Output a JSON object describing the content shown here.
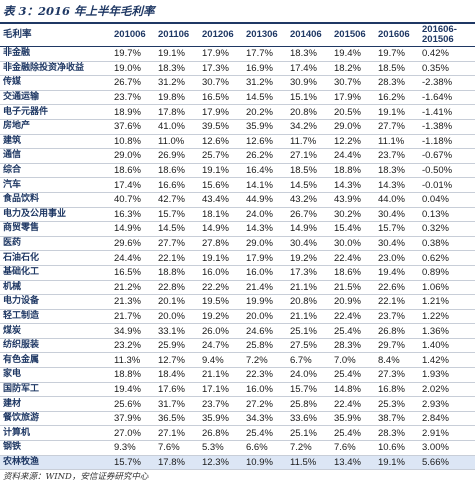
{
  "title": "表 3：2016 年上半年毛利率",
  "columns": [
    "毛利率",
    "201006",
    "201106",
    "201206",
    "201306",
    "201406",
    "201506",
    "201606",
    "201606-201506"
  ],
  "rows": [
    [
      "非金融",
      "19.7%",
      "19.1%",
      "17.9%",
      "17.7%",
      "18.3%",
      "19.4%",
      "19.7%",
      "0.42%"
    ],
    [
      "非金融除投资净收益",
      "19.0%",
      "18.3%",
      "17.3%",
      "16.9%",
      "17.4%",
      "18.2%",
      "18.5%",
      "0.35%"
    ],
    [
      "传媒",
      "26.7%",
      "31.2%",
      "30.7%",
      "31.2%",
      "30.9%",
      "30.7%",
      "28.3%",
      "-2.38%"
    ],
    [
      "交通运输",
      "23.7%",
      "19.8%",
      "16.5%",
      "14.5%",
      "15.1%",
      "17.9%",
      "16.2%",
      "-1.64%"
    ],
    [
      "电子元器件",
      "18.9%",
      "17.8%",
      "17.9%",
      "20.2%",
      "20.8%",
      "20.5%",
      "19.1%",
      "-1.41%"
    ],
    [
      "房地产",
      "37.6%",
      "41.0%",
      "39.5%",
      "35.9%",
      "34.2%",
      "29.0%",
      "27.7%",
      "-1.38%"
    ],
    [
      "建筑",
      "10.8%",
      "11.0%",
      "12.6%",
      "12.6%",
      "11.7%",
      "12.2%",
      "11.1%",
      "-1.18%"
    ],
    [
      "通信",
      "29.0%",
      "26.9%",
      "25.7%",
      "26.2%",
      "27.1%",
      "24.4%",
      "23.7%",
      "-0.67%"
    ],
    [
      "综合",
      "18.6%",
      "18.6%",
      "19.1%",
      "16.4%",
      "18.5%",
      "18.8%",
      "18.3%",
      "-0.50%"
    ],
    [
      "汽车",
      "17.4%",
      "16.6%",
      "15.6%",
      "14.1%",
      "14.5%",
      "14.3%",
      "14.3%",
      "-0.01%"
    ],
    [
      "食品饮料",
      "40.7%",
      "42.7%",
      "43.4%",
      "44.9%",
      "43.2%",
      "43.9%",
      "44.0%",
      "0.04%"
    ],
    [
      "电力及公用事业",
      "16.3%",
      "15.7%",
      "18.1%",
      "24.0%",
      "26.7%",
      "30.2%",
      "30.4%",
      "0.13%"
    ],
    [
      "商贸零售",
      "14.9%",
      "14.5%",
      "14.9%",
      "14.3%",
      "14.9%",
      "15.4%",
      "15.7%",
      "0.32%"
    ],
    [
      "医药",
      "29.6%",
      "27.7%",
      "27.8%",
      "29.0%",
      "30.4%",
      "30.0%",
      "30.4%",
      "0.38%"
    ],
    [
      "石油石化",
      "24.4%",
      "22.1%",
      "19.1%",
      "17.9%",
      "19.2%",
      "22.4%",
      "23.0%",
      "0.62%"
    ],
    [
      "基础化工",
      "16.5%",
      "18.8%",
      "16.0%",
      "16.0%",
      "17.3%",
      "18.6%",
      "19.4%",
      "0.89%"
    ],
    [
      "机械",
      "21.2%",
      "22.8%",
      "22.2%",
      "21.4%",
      "21.1%",
      "21.5%",
      "22.6%",
      "1.06%"
    ],
    [
      "电力设备",
      "21.3%",
      "20.1%",
      "19.5%",
      "19.9%",
      "20.8%",
      "20.9%",
      "22.1%",
      "1.21%"
    ],
    [
      "轻工制造",
      "21.7%",
      "20.0%",
      "19.2%",
      "20.0%",
      "21.1%",
      "22.4%",
      "23.7%",
      "1.22%"
    ],
    [
      "煤炭",
      "34.9%",
      "33.1%",
      "26.0%",
      "24.6%",
      "25.1%",
      "25.4%",
      "26.8%",
      "1.36%"
    ],
    [
      "纺织服装",
      "23.2%",
      "25.9%",
      "24.7%",
      "25.8%",
      "27.5%",
      "28.3%",
      "29.7%",
      "1.40%"
    ],
    [
      "有色金属",
      "11.3%",
      "12.7%",
      "9.4%",
      "7.2%",
      "6.7%",
      "7.0%",
      "8.4%",
      "1.42%"
    ],
    [
      "家电",
      "18.8%",
      "18.4%",
      "21.1%",
      "22.3%",
      "24.0%",
      "25.4%",
      "27.3%",
      "1.93%"
    ],
    [
      "国防军工",
      "19.4%",
      "17.6%",
      "17.1%",
      "16.0%",
      "15.7%",
      "14.8%",
      "16.8%",
      "2.02%"
    ],
    [
      "建材",
      "25.6%",
      "31.7%",
      "23.7%",
      "27.2%",
      "25.8%",
      "22.4%",
      "25.3%",
      "2.93%"
    ],
    [
      "餐饮旅游",
      "37.9%",
      "36.5%",
      "35.9%",
      "34.3%",
      "33.6%",
      "35.9%",
      "38.7%",
      "2.84%"
    ],
    [
      "计算机",
      "27.0%",
      "27.1%",
      "26.8%",
      "25.4%",
      "25.1%",
      "25.4%",
      "28.3%",
      "2.91%"
    ],
    [
      "钢铁",
      "9.3%",
      "7.6%",
      "5.3%",
      "6.6%",
      "7.2%",
      "7.6%",
      "10.6%",
      "3.00%"
    ],
    [
      "农林牧渔",
      "15.7%",
      "17.8%",
      "12.3%",
      "10.9%",
      "11.5%",
      "13.4%",
      "19.1%",
      "5.66%"
    ]
  ],
  "highlighted_row_index": 28,
  "source": "资料来源：WIND，安信证券研究中心",
  "colors": {
    "title": "#1f3864",
    "header_rule": "#1f3864",
    "row_rule": "#c8ced8",
    "highlight_row": "#dce6f5"
  }
}
